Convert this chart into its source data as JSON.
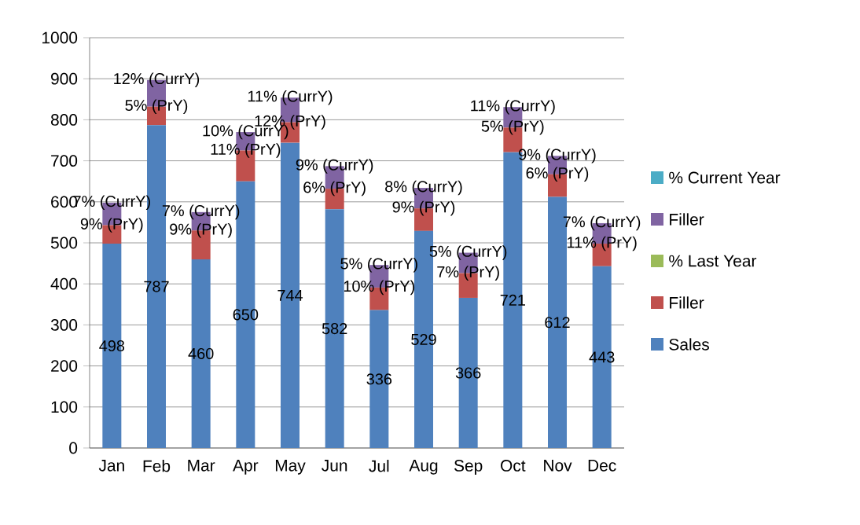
{
  "chart_data": {
    "type": "bar",
    "stacked": true,
    "categories": [
      "Jan",
      "Feb",
      "Mar",
      "Apr",
      "May",
      "Jun",
      "Jul",
      "Aug",
      "Sep",
      "Oct",
      "Nov",
      "Dec"
    ],
    "ylim": [
      0,
      1000
    ],
    "yticks": [
      0,
      100,
      200,
      300,
      400,
      500,
      600,
      700,
      800,
      900,
      1000
    ],
    "grid": "y",
    "legend": "right",
    "series": [
      {
        "name": "Sales",
        "color": "#4f81bd",
        "values": [
          498,
          787,
          460,
          650,
          744,
          582,
          336,
          529,
          366,
          721,
          612,
          443
        ],
        "value_labels": [
          "498",
          "787",
          "460",
          "650",
          "744",
          "582",
          "336",
          "529",
          "366",
          "721",
          "612",
          "443"
        ]
      },
      {
        "name": "Filler",
        "color": "#c0504d",
        "values": [
          45,
          45,
          70,
          75,
          50,
          50,
          55,
          55,
          60,
          60,
          55,
          55
        ]
      },
      {
        "name": "% Last Year",
        "color": "#9bbb59",
        "values": [
          0,
          0,
          0,
          0,
          0,
          0,
          0,
          0,
          0,
          0,
          0,
          0
        ]
      },
      {
        "name": "Filler",
        "color": "#8064a2",
        "values": [
          55,
          65,
          45,
          45,
          60,
          55,
          55,
          50,
          50,
          50,
          45,
          50
        ]
      },
      {
        "name": "% Current Year",
        "color": "#4bacc6",
        "values": [
          0,
          0,
          0,
          0,
          0,
          0,
          0,
          0,
          0,
          0,
          0,
          0
        ]
      }
    ],
    "annotations": [
      {
        "text": "9% (PrY)",
        "x": "Jan",
        "y": 543
      },
      {
        "text": "7% (CurrY)",
        "x": "Jan",
        "y": 598
      },
      {
        "text": "5% (PrY)",
        "x": "Feb",
        "y": 832
      },
      {
        "text": "12% (CurrY)",
        "x": "Feb",
        "y": 897
      },
      {
        "text": "9% (PrY)",
        "x": "Mar",
        "y": 530
      },
      {
        "text": "7% (CurrY)",
        "x": "Mar",
        "y": 575
      },
      {
        "text": "11% (PrY)",
        "x": "Apr",
        "y": 725
      },
      {
        "text": "10% (CurrY)",
        "x": "Apr",
        "y": 770
      },
      {
        "text": "12% (PrY)",
        "x": "May",
        "y": 794
      },
      {
        "text": "11% (CurrY)",
        "x": "May",
        "y": 854
      },
      {
        "text": "6% (PrY)",
        "x": "Jun",
        "y": 632
      },
      {
        "text": "9% (CurrY)",
        "x": "Jun",
        "y": 687
      },
      {
        "text": "10% (PrY)",
        "x": "Jul",
        "y": 391
      },
      {
        "text": "5% (CurrY)",
        "x": "Jul",
        "y": 446
      },
      {
        "text": "9% (PrY)",
        "x": "Aug",
        "y": 584
      },
      {
        "text": "8% (CurrY)",
        "x": "Aug",
        "y": 634
      },
      {
        "text": "7% (PrY)",
        "x": "Sep",
        "y": 426
      },
      {
        "text": "5% (CurrY)",
        "x": "Sep",
        "y": 476
      },
      {
        "text": "5% (PrY)",
        "x": "Oct",
        "y": 781
      },
      {
        "text": "11% (CurrY)",
        "x": "Oct",
        "y": 831
      },
      {
        "text": "6% (PrY)",
        "x": "Nov",
        "y": 667
      },
      {
        "text": "9% (CurrY)",
        "x": "Nov",
        "y": 712
      },
      {
        "text": "11% (PrY)",
        "x": "Dec",
        "y": 498
      },
      {
        "text": "7% (CurrY)",
        "x": "Dec",
        "y": 548
      }
    ]
  }
}
